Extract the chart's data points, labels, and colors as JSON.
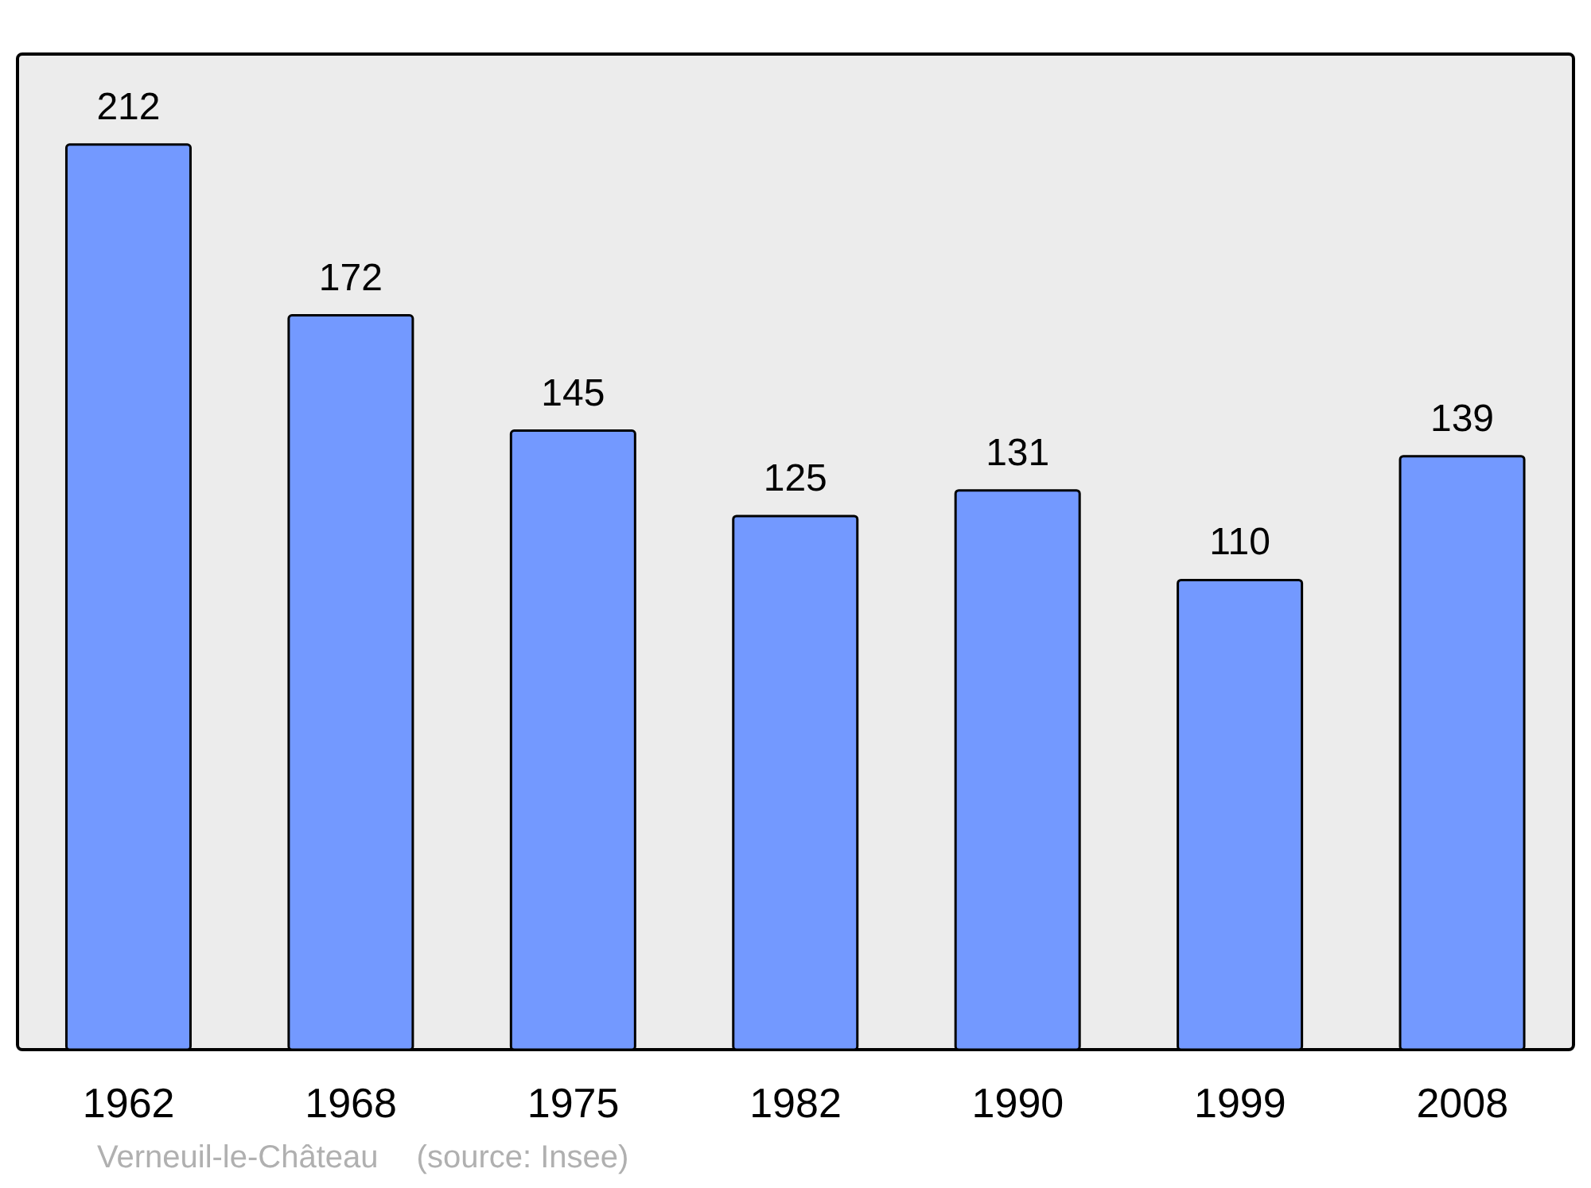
{
  "chart_data": {
    "type": "bar",
    "categories": [
      "1962",
      "1968",
      "1975",
      "1982",
      "1990",
      "1999",
      "2008"
    ],
    "values": [
      212,
      172,
      145,
      125,
      131,
      110,
      139
    ],
    "color": "#7399ff",
    "data_labels": true,
    "annotations": [
      "Verneuil-le-Château",
      "(source: Insee)"
    ]
  }
}
